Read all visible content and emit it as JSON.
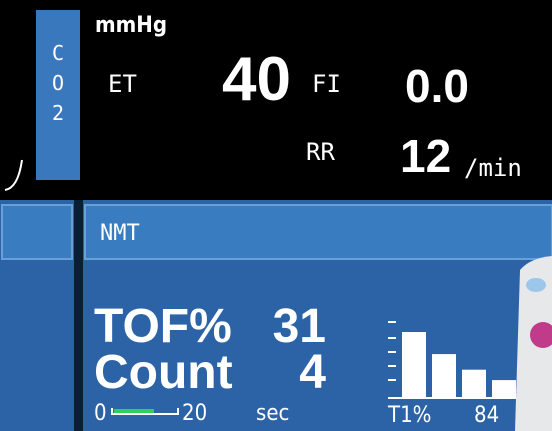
{
  "co2_panel": {
    "label_letters": [
      "C",
      "O",
      "2"
    ],
    "unit": "mmHg",
    "et_label": "ET",
    "et_value": "40",
    "fi_label": "FI",
    "fi_value": "0.0",
    "rr_label": "RR",
    "rr_value": "12",
    "rr_unit": "/min"
  },
  "nmt_panel": {
    "title": "NMT",
    "tof_label": "TOF%",
    "tof_value": "31",
    "count_label": "Count",
    "count_value": "4",
    "timer_start": "0",
    "timer_end": "20",
    "timer_unit": "sec",
    "t1_label": "T1%",
    "t1_value": "84",
    "twitch_heights": [
      100,
      66,
      42,
      26
    ]
  }
}
